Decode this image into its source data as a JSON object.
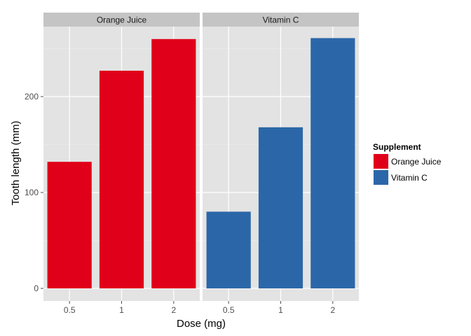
{
  "chart_data": {
    "type": "bar",
    "xlabel": "Dose (mg)",
    "ylabel": "Tooth length (mm)",
    "ylim": [
      0,
      270
    ],
    "yticks": [
      0,
      100,
      200
    ],
    "grid": true,
    "categories": [
      "0.5",
      "1",
      "2"
    ],
    "facets": [
      "Orange Juice",
      "Vitamin C"
    ],
    "series": [
      {
        "name": "Orange Juice",
        "color": "#E0001A",
        "values": [
          132,
          227,
          260
        ]
      },
      {
        "name": "Vitamin C",
        "color": "#2B67A8",
        "values": [
          80,
          168,
          261
        ]
      }
    ],
    "legend": {
      "title": "Supplement",
      "position": "right",
      "items": [
        "Orange Juice",
        "Vitamin C"
      ]
    }
  }
}
